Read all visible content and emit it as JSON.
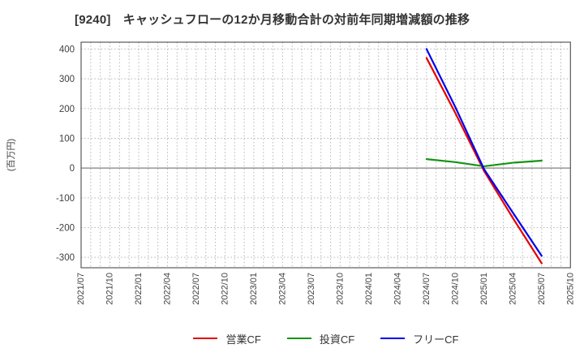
{
  "title": "[9240]　キャッシュフローの12か月移動合計の対前年同期増減額の推移",
  "chart_data": {
    "type": "line",
    "title": "[9240]　キャッシュフローの12か月移動合計の対前年同期増減額の推移",
    "ylabel": "(百万円)",
    "xlabel": "",
    "x_tick_labels": [
      "2021/07",
      "2021/10",
      "2022/01",
      "2022/04",
      "2022/07",
      "2022/10",
      "2023/01",
      "2023/04",
      "2023/07",
      "2023/10",
      "2024/01",
      "2024/04",
      "2024/07",
      "2024/10",
      "2025/01",
      "2025/04",
      "2025/07",
      "2025/10"
    ],
    "x_months_total": 51,
    "months_per_labeled_tick": 3,
    "yticks": [
      400,
      300,
      200,
      100,
      0,
      -100,
      -200,
      -300
    ],
    "ylim": [
      -335,
      423
    ],
    "grid": "dotted",
    "zero_line": "solid",
    "legend_position": "bottom-center",
    "series": [
      {
        "name": "営業CF",
        "color": "#e60000",
        "x_labels": [
          "2024/07",
          "2024/10",
          "2025/01",
          "2025/04",
          "2025/07"
        ],
        "x_months": [
          36,
          39,
          42,
          45,
          48
        ],
        "values": [
          370,
          185,
          -10,
          -168,
          -320
        ]
      },
      {
        "name": "投資CF",
        "color": "#169416",
        "x_labels": [
          "2024/07",
          "2024/10",
          "2025/01",
          "2025/04",
          "2025/07"
        ],
        "x_months": [
          36,
          39,
          42,
          45,
          48
        ],
        "values": [
          30,
          20,
          6,
          18,
          25
        ]
      },
      {
        "name": "フリーCF",
        "color": "#0000ee",
        "x_labels": [
          "2024/07",
          "2024/10",
          "2025/01",
          "2025/04",
          "2025/07"
        ],
        "x_months": [
          36,
          39,
          42,
          45,
          48
        ],
        "values": [
          400,
          205,
          -4,
          -150,
          -295
        ]
      }
    ],
    "colors": {
      "grid": "#b5b5b5",
      "zero_line": "#808080",
      "spine": "#595959",
      "tick_label": "#404040",
      "title": "#333333"
    }
  }
}
